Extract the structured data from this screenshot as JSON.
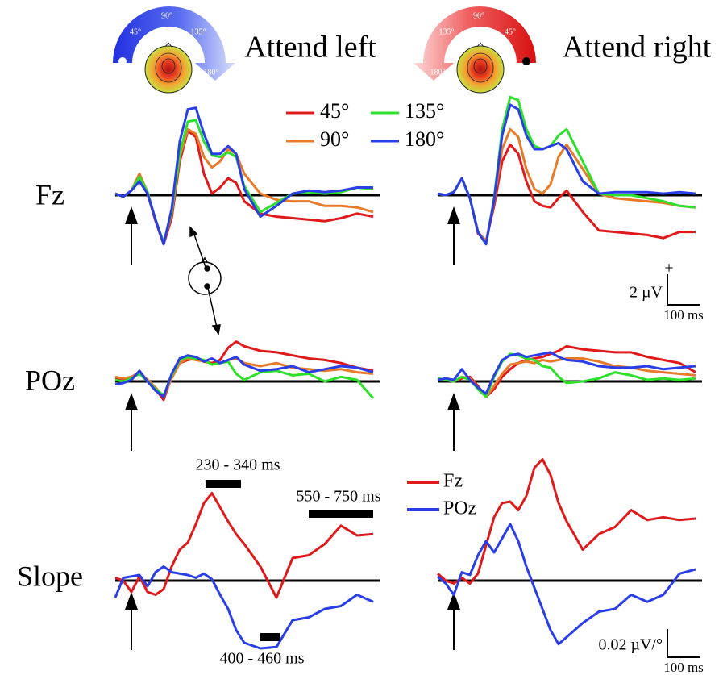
{
  "headers": [
    {
      "title": "Attend left",
      "angles": [
        "45°",
        "90°",
        "135°",
        "180°"
      ]
    },
    {
      "title": "Attend right",
      "angles": [
        "135°",
        "90°",
        "45°",
        "180°"
      ]
    }
  ],
  "rows": [
    "Fz",
    "POz",
    "Slope"
  ],
  "chart_data": [
    {
      "type": "line",
      "xlim": [
        -50,
        770
      ],
      "ylim": [
        -4,
        7
      ],
      "x": [
        -50,
        -25,
        0,
        25,
        50,
        75,
        100,
        125,
        150,
        175,
        200,
        225,
        250,
        275,
        300,
        325,
        350,
        400,
        450,
        500,
        550,
        600,
        650,
        700,
        750
      ],
      "series": [
        {
          "name": "45°",
          "color": "#e0191b",
          "values": [
            0.1,
            -0.1,
            0.3,
            1.1,
            0.1,
            -1.7,
            -3.2,
            -1.5,
            2.2,
            4.2,
            3.8,
            1.4,
            0.1,
            0.5,
            1.1,
            0.8,
            -0.4,
            -1.2,
            -1.4,
            -1.5,
            -1.6,
            -1.7,
            -1.5,
            -1.2,
            -1.4
          ]
        },
        {
          "name": "90°",
          "color": "#e87b2a",
          "values": [
            0.1,
            -0.1,
            0.3,
            1.4,
            0.2,
            -1.6,
            -3.1,
            -1.2,
            2.5,
            4.3,
            4.0,
            2.5,
            1.8,
            2.2,
            3.0,
            2.7,
            1.4,
            0.1,
            -0.3,
            -0.4,
            -0.4,
            -0.7,
            -0.7,
            -0.8,
            -1.1
          ]
        },
        {
          "name": "135°",
          "color": "#2de02a",
          "values": [
            0.1,
            -0.1,
            0.3,
            1.2,
            0.2,
            -1.6,
            -3.1,
            -1.1,
            2.7,
            4.8,
            4.9,
            3.5,
            2.6,
            2.5,
            2.8,
            2.5,
            0.6,
            -1.1,
            -0.5,
            0.1,
            0.2,
            0.1,
            0.2,
            0.5,
            0.4
          ]
        },
        {
          "name": "180°",
          "color": "#2a3ee8",
          "values": [
            0.1,
            -0.1,
            0.3,
            0.9,
            0.1,
            -1.6,
            -3.2,
            -0.9,
            3.5,
            5.6,
            5.7,
            4.0,
            2.7,
            2.7,
            3.2,
            2.7,
            0.4,
            -1.4,
            -0.7,
            0.1,
            0.3,
            0.2,
            0.3,
            0.5,
            0.5
          ]
        }
      ]
    },
    {
      "type": "line",
      "xlim": [
        -50,
        770
      ],
      "ylim": [
        -4,
        7
      ],
      "x": [
        -50,
        -25,
        0,
        25,
        50,
        75,
        100,
        125,
        150,
        175,
        200,
        225,
        250,
        275,
        300,
        325,
        350,
        400,
        450,
        500,
        550,
        600,
        650,
        700,
        750
      ],
      "series": [
        {
          "name": "45°",
          "color": "#e0191b",
          "values": [
            0.1,
            0,
            0.2,
            1.1,
            -0.2,
            -2.5,
            -3.0,
            -0.7,
            2.2,
            3.3,
            2.7,
            0.9,
            -0.4,
            -0.7,
            -0.8,
            -0.2,
            0.3,
            -1.1,
            -2.3,
            -2.4,
            -2.5,
            -2.6,
            -2.8,
            -2.4,
            -2.4
          ]
        },
        {
          "name": "90°",
          "color": "#e87b2a",
          "values": [
            0.1,
            0,
            0.2,
            1.1,
            -0.2,
            -2.4,
            -3.0,
            -0.4,
            3.0,
            4.3,
            3.8,
            1.7,
            0.4,
            0.1,
            0.7,
            2.5,
            3.3,
            1.7,
            0.1,
            -0.2,
            -0.3,
            -0.4,
            -0.5,
            -0.7,
            -0.8
          ]
        },
        {
          "name": "135°",
          "color": "#2de02a",
          "values": [
            0.1,
            0,
            0.2,
            1.1,
            -0.2,
            -2.4,
            -3.2,
            -0.2,
            4.3,
            6.4,
            6.2,
            4.3,
            3.2,
            3.0,
            3.2,
            3.9,
            4.3,
            2.2,
            0.1,
            0,
            0,
            -0.2,
            -0.4,
            -0.7,
            -0.8
          ]
        },
        {
          "name": "180°",
          "color": "#2a3ee8",
          "values": [
            0.1,
            0,
            0.2,
            1.1,
            -0.2,
            -2.4,
            -3.2,
            -0.3,
            3.9,
            5.9,
            5.6,
            3.9,
            3.0,
            3.0,
            3.2,
            3.4,
            3.0,
            0.9,
            0.1,
            0.2,
            0.2,
            0.2,
            0.1,
            0.2,
            0.1
          ]
        }
      ],
      "scale_bar": {
        "plus": "+",
        "minus": "−",
        "y": 2,
        "y_label": "2 µV",
        "x": 100,
        "x_label": "100 ms"
      }
    },
    {
      "type": "line",
      "xlim": [
        -50,
        770
      ],
      "ylim": [
        -3,
        3.5
      ],
      "x": [
        -50,
        -25,
        0,
        25,
        50,
        75,
        100,
        125,
        150,
        175,
        200,
        225,
        250,
        275,
        300,
        325,
        350,
        400,
        450,
        500,
        550,
        600,
        650,
        700,
        750
      ],
      "series": [
        {
          "name": "45°",
          "color": "#e0191b",
          "values": [
            0.2,
            0.1,
            0.3,
            0.5,
            0.1,
            -0.5,
            -1.2,
            0.3,
            1.2,
            1.4,
            1.5,
            1.3,
            1.2,
            1.4,
            2.2,
            2.6,
            2.3,
            2.0,
            1.9,
            1.7,
            1.5,
            1.4,
            1.2,
            0.9,
            0.7
          ]
        },
        {
          "name": "90°",
          "color": "#e87b2a",
          "values": [
            0.3,
            0.2,
            0.3,
            0.6,
            0.1,
            -0.4,
            -1.0,
            0.2,
            1.2,
            1.5,
            1.4,
            1.3,
            1.5,
            1.2,
            1.4,
            1.5,
            1.2,
            1.0,
            1.2,
            0.9,
            0.8,
            0.7,
            0.8,
            0.6,
            0.5
          ]
        },
        {
          "name": "135°",
          "color": "#2de02a",
          "values": [
            0.1,
            0,
            0.2,
            0.5,
            0,
            -0.5,
            -0.9,
            0.4,
            1.4,
            1.6,
            1.5,
            1.4,
            1.1,
            1.2,
            1.3,
            0.5,
            0.1,
            0.6,
            0.7,
            0.4,
            0.5,
            0,
            0.3,
            0.1,
            -1.1
          ]
        },
        {
          "name": "180°",
          "color": "#2a3ee8",
          "values": [
            -0.2,
            -0.1,
            0.1,
            0.7,
            0,
            -0.6,
            -1.0,
            0.5,
            1.5,
            1.7,
            1.6,
            1.3,
            1.5,
            1.2,
            1.4,
            1.6,
            1.1,
            0.7,
            0.8,
            1.0,
            0.6,
            0.8,
            1.0,
            0.9,
            0.6
          ]
        }
      ]
    },
    {
      "type": "line",
      "xlim": [
        -50,
        770
      ],
      "ylim": [
        -3,
        3.5
      ],
      "x": [
        -50,
        -25,
        0,
        25,
        50,
        75,
        100,
        125,
        150,
        175,
        200,
        225,
        250,
        275,
        300,
        325,
        350,
        400,
        450,
        500,
        550,
        600,
        650,
        700,
        750
      ],
      "series": [
        {
          "name": "45°",
          "color": "#e0191b",
          "values": [
            0.2,
            0.1,
            0,
            0.2,
            0.3,
            -0.3,
            -1.0,
            -0.5,
            0.3,
            0.8,
            1.2,
            1.4,
            1.5,
            1.6,
            1.8,
            2.0,
            2.3,
            2.1,
            2.0,
            1.9,
            1.9,
            1.6,
            1.4,
            1.2,
            0.6
          ]
        },
        {
          "name": "90°",
          "color": "#e87b2a",
          "values": [
            0.1,
            0.1,
            0,
            0.3,
            0.2,
            -0.4,
            -1.0,
            -0.3,
            0.5,
            1.1,
            1.2,
            1.3,
            1.2,
            1.4,
            1.3,
            1.4,
            1.5,
            1.5,
            1.3,
            1.0,
            0.9,
            0.7,
            0.6,
            0.5,
            0.4
          ]
        },
        {
          "name": "135°",
          "color": "#2de02a",
          "values": [
            0.2,
            0.1,
            0,
            0.3,
            0.1,
            -0.5,
            -1.0,
            0.3,
            1.3,
            1.8,
            1.7,
            1.5,
            1.4,
            1.0,
            0.9,
            0.3,
            -0.1,
            0,
            0.2,
            0.6,
            0.4,
            0.1,
            0.2,
            0.1,
            0.2
          ]
        },
        {
          "name": "180°",
          "color": "#2a3ee8",
          "values": [
            0.1,
            0.2,
            0.1,
            0.8,
            0.1,
            -0.4,
            -0.8,
            0.4,
            1.4,
            1.7,
            1.8,
            1.6,
            1.7,
            1.8,
            1.9,
            1.6,
            1.4,
            1.3,
            1.0,
            0.9,
            0.9,
            1.0,
            0.8,
            0.9,
            1.0
          ]
        }
      ]
    },
    {
      "type": "line",
      "xlim": [
        -50,
        770
      ],
      "ylim": [
        -0.06,
        0.1
      ],
      "x": [
        -50,
        -25,
        0,
        25,
        50,
        75,
        100,
        125,
        150,
        175,
        200,
        225,
        250,
        275,
        300,
        325,
        350,
        400,
        450,
        500,
        550,
        600,
        650,
        700,
        750
      ],
      "series": [
        {
          "name": "Fz",
          "color": "#e0191b",
          "values": [
            0.002,
            0,
            -0.008,
            0.003,
            -0.008,
            -0.01,
            -0.006,
            0.01,
            0.022,
            0.027,
            0.04,
            0.055,
            0.062,
            0.052,
            0.042,
            0.033,
            0.026,
            0.01,
            -0.012,
            0.016,
            0.018,
            0.026,
            0.039,
            0.032,
            0.033
          ]
        },
        {
          "name": "POz",
          "color": "#2a3ee8",
          "values": [
            -0.012,
            0.002,
            0.003,
            0.004,
            -0.004,
            0.006,
            0.01,
            0.006,
            0.005,
            0.004,
            0.002,
            0.005,
            0.001,
            -0.01,
            -0.02,
            -0.035,
            -0.044,
            -0.048,
            -0.047,
            -0.028,
            -0.026,
            -0.02,
            -0.018,
            -0.01,
            -0.015
          ]
        }
      ],
      "annotations": [
        {
          "label": "230 - 340 ms",
          "range": [
            230,
            340
          ]
        },
        {
          "label": "550 - 750 ms",
          "range": [
            550,
            750
          ]
        },
        {
          "label": "400 - 460 ms",
          "range": [
            400,
            460
          ]
        }
      ]
    },
    {
      "type": "line",
      "xlim": [
        -50,
        770
      ],
      "ylim": [
        -0.06,
        0.1
      ],
      "x": [
        -50,
        -25,
        0,
        25,
        50,
        75,
        100,
        125,
        150,
        175,
        200,
        225,
        250,
        275,
        300,
        325,
        350,
        400,
        450,
        500,
        550,
        600,
        650,
        700,
        750
      ],
      "series": [
        {
          "name": "Fz",
          "color": "#e0191b",
          "values": [
            0.005,
            0,
            -0.002,
            0.002,
            -0.002,
            0.005,
            0.025,
            0.045,
            0.055,
            0.056,
            0.05,
            0.06,
            0.08,
            0.086,
            0.075,
            0.055,
            0.042,
            0.022,
            0.033,
            0.038,
            0.05,
            0.043,
            0.045,
            0.043,
            0.044
          ]
        },
        {
          "name": "POz",
          "color": "#2a3ee8",
          "values": [
            0.003,
            -0.002,
            -0.01,
            0.006,
            0.004,
            0.018,
            0.028,
            0.02,
            0.03,
            0.04,
            0.028,
            0.01,
            -0.005,
            -0.02,
            -0.035,
            -0.045,
            -0.04,
            -0.03,
            -0.022,
            -0.02,
            -0.01,
            -0.015,
            -0.01,
            0.005,
            0.008
          ]
        }
      ],
      "scale_bar": {
        "y": 0.02,
        "y_label": "0.02 µV/°",
        "x": 100,
        "x_label": "100 ms"
      }
    }
  ]
}
